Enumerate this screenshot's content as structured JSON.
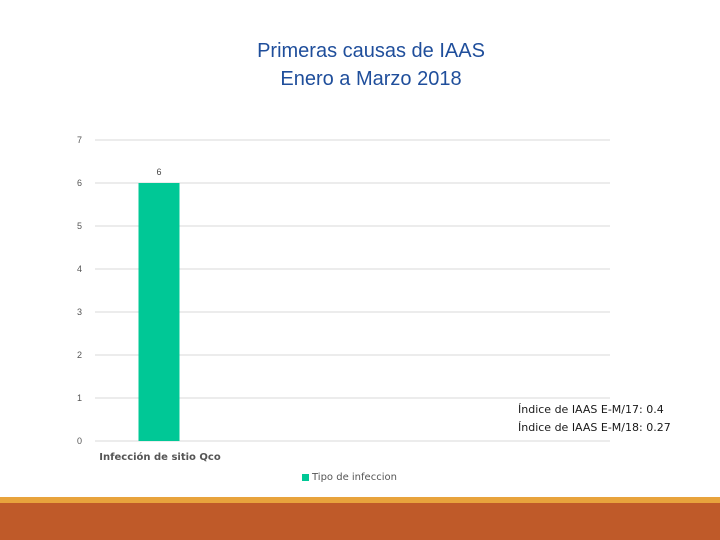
{
  "slide": {
    "title_line1": "Primeras causas de IAAS",
    "title_line2": "Enero a Marzo 2018",
    "note_line1": "Índice  de IAAS E-M/17: 0.4",
    "note_line2": "Índice de IAAS E-M/18:  0.27"
  },
  "colors": {
    "title": "#1f4e9b",
    "bar": "#00c896",
    "gridline": "#d9d9d9",
    "band_gold": "#e8a33c",
    "band_rust": "#bf5a29"
  },
  "chart_data": {
    "type": "bar",
    "categories": [
      "Infección de sitio Qco"
    ],
    "series": [
      {
        "name": "Tipo de infeccion",
        "values": [
          6
        ]
      }
    ],
    "ylim": [
      0,
      7
    ],
    "yticks": [
      0,
      1,
      2,
      3,
      4,
      5,
      6,
      7
    ],
    "grid": true,
    "data_labels": true,
    "legend": "bottom"
  }
}
